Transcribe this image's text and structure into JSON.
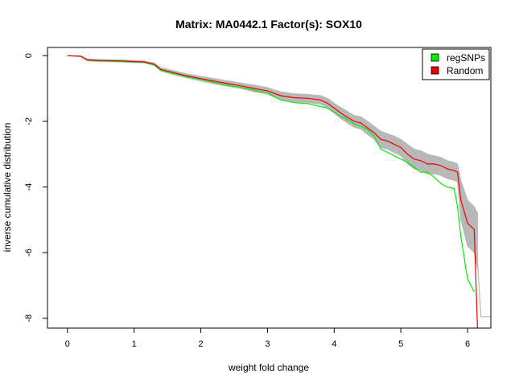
{
  "chart_data": {
    "type": "line",
    "title": "Matrix: MA0442.1 Factor(s): SOX10",
    "xlabel": "weight fold change",
    "ylabel": "inverse cumulative distribution",
    "xlim": [
      -0.3,
      6.35
    ],
    "ylim": [
      -8.3,
      0.25
    ],
    "xticks": [
      0,
      1,
      2,
      3,
      4,
      5,
      6
    ],
    "yticks": [
      0,
      -2,
      -4,
      -6,
      -8
    ],
    "grid": false,
    "legend": {
      "position": "top-right",
      "entries": [
        {
          "label": "regSNPs",
          "color": "#00ee00"
        },
        {
          "label": "Random",
          "color": "#ee0000"
        }
      ]
    },
    "series": [
      {
        "name": "regSNPs",
        "color": "#00ee00",
        "x": [
          0.0,
          0.2,
          0.3,
          0.5,
          0.8,
          1.0,
          1.15,
          1.3,
          1.4,
          1.6,
          1.8,
          2.0,
          2.2,
          2.4,
          2.6,
          2.8,
          3.0,
          3.1,
          3.2,
          3.4,
          3.6,
          3.8,
          3.9,
          4.0,
          4.1,
          4.2,
          4.3,
          4.4,
          4.5,
          4.6,
          4.7,
          4.8,
          4.9,
          5.0,
          5.1,
          5.2,
          5.3,
          5.4,
          5.5,
          5.6,
          5.7,
          5.8,
          5.85,
          5.9,
          6.0,
          6.1
        ],
        "y": [
          0.0,
          -0.02,
          -0.14,
          -0.16,
          -0.18,
          -0.19,
          -0.2,
          -0.28,
          -0.45,
          -0.55,
          -0.65,
          -0.72,
          -0.82,
          -0.9,
          -0.97,
          -1.05,
          -1.13,
          -1.25,
          -1.35,
          -1.43,
          -1.46,
          -1.55,
          -1.6,
          -1.72,
          -1.85,
          -1.95,
          -2.08,
          -2.15,
          -2.25,
          -2.45,
          -2.85,
          -2.95,
          -3.05,
          -3.15,
          -3.25,
          -3.4,
          -3.55,
          -3.55,
          -3.7,
          -3.9,
          -4.0,
          -4.05,
          -4.6,
          -5.5,
          -6.8,
          -7.2
        ]
      },
      {
        "name": "Random",
        "color": "#ee0000",
        "x": [
          0.0,
          0.2,
          0.3,
          0.5,
          0.8,
          1.0,
          1.15,
          1.3,
          1.4,
          1.6,
          1.8,
          2.0,
          2.2,
          2.4,
          2.6,
          2.8,
          3.0,
          3.1,
          3.2,
          3.4,
          3.6,
          3.8,
          3.9,
          4.0,
          4.1,
          4.2,
          4.3,
          4.4,
          4.5,
          4.6,
          4.7,
          4.8,
          4.9,
          5.0,
          5.1,
          5.2,
          5.3,
          5.4,
          5.5,
          5.6,
          5.7,
          5.8,
          5.85,
          5.9,
          6.0,
          6.1,
          6.15
        ],
        "y": [
          0.0,
          -0.02,
          -0.13,
          -0.15,
          -0.16,
          -0.18,
          -0.19,
          -0.26,
          -0.42,
          -0.52,
          -0.62,
          -0.7,
          -0.78,
          -0.85,
          -0.92,
          -1.0,
          -1.07,
          -1.15,
          -1.22,
          -1.28,
          -1.3,
          -1.35,
          -1.45,
          -1.6,
          -1.75,
          -1.88,
          -2.0,
          -2.05,
          -2.2,
          -2.35,
          -2.55,
          -2.6,
          -2.7,
          -2.8,
          -3.0,
          -3.15,
          -3.2,
          -3.3,
          -3.3,
          -3.35,
          -3.45,
          -3.5,
          -3.55,
          -4.4,
          -5.1,
          -5.3,
          -8.5
        ]
      }
    ],
    "background_band": {
      "color": "#b8b8b8",
      "x": [
        0.0,
        0.2,
        0.3,
        0.5,
        0.8,
        1.0,
        1.15,
        1.3,
        1.4,
        1.6,
        1.8,
        2.0,
        2.2,
        2.4,
        2.6,
        2.8,
        3.0,
        3.1,
        3.2,
        3.4,
        3.6,
        3.8,
        3.9,
        4.0,
        4.1,
        4.2,
        4.3,
        4.4,
        4.5,
        4.6,
        4.7,
        4.8,
        4.9,
        5.0,
        5.1,
        5.2,
        5.3,
        5.4,
        5.5,
        5.6,
        5.7,
        5.8,
        5.85,
        5.9,
        6.0,
        6.1,
        6.15
      ],
      "upper": [
        0.0,
        -0.01,
        -0.1,
        -0.12,
        -0.13,
        -0.15,
        -0.16,
        -0.22,
        -0.37,
        -0.46,
        -0.56,
        -0.63,
        -0.7,
        -0.77,
        -0.83,
        -0.9,
        -0.97,
        -1.04,
        -1.1,
        -1.16,
        -1.18,
        -1.22,
        -1.3,
        -1.45,
        -1.58,
        -1.7,
        -1.82,
        -1.86,
        -2.0,
        -2.15,
        -2.3,
        -2.38,
        -2.45,
        -2.55,
        -2.7,
        -2.85,
        -2.9,
        -3.0,
        -3.05,
        -3.1,
        -3.2,
        -3.25,
        -3.3,
        -3.8,
        -4.4,
        -4.6,
        -4.8
      ],
      "lower": [
        0.0,
        -0.03,
        -0.16,
        -0.18,
        -0.19,
        -0.21,
        -0.22,
        -0.3,
        -0.47,
        -0.58,
        -0.68,
        -0.77,
        -0.86,
        -0.93,
        -1.0,
        -1.1,
        -1.17,
        -1.26,
        -1.33,
        -1.4,
        -1.43,
        -1.48,
        -1.6,
        -1.75,
        -1.92,
        -2.05,
        -2.18,
        -2.24,
        -2.4,
        -2.55,
        -2.8,
        -2.85,
        -2.95,
        -3.05,
        -3.3,
        -3.45,
        -3.5,
        -3.6,
        -3.6,
        -3.65,
        -3.75,
        -3.8,
        -3.85,
        -5.0,
        -5.8,
        -6.0,
        -6.5
      ]
    },
    "gray_tail": {
      "color": "#b8b8b8",
      "x": [
        6.1,
        6.2,
        6.35
      ],
      "y": [
        -4.6,
        -7.95,
        -7.95
      ]
    }
  }
}
